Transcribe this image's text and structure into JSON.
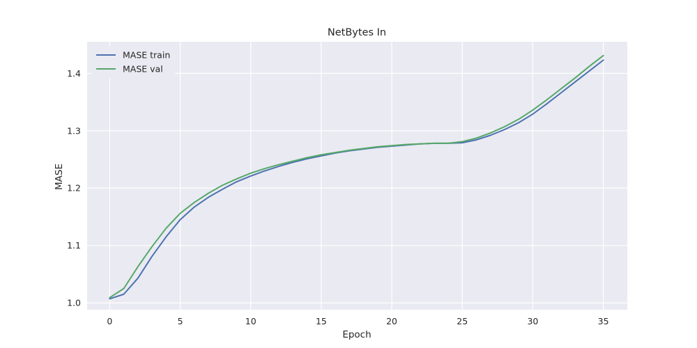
{
  "chart_data": {
    "type": "line",
    "title": "NetBytes In",
    "xlabel": "Epoch",
    "ylabel": "MASE",
    "xlim": [
      -1.6,
      36.7
    ],
    "ylim": [
      0.988,
      1.455
    ],
    "xticks": [
      0,
      5,
      10,
      15,
      20,
      25,
      30,
      35
    ],
    "yticks": [
      1.0,
      1.1,
      1.2,
      1.3,
      1.4
    ],
    "ytick_labels": [
      "1.0",
      "1.1",
      "1.2",
      "1.3",
      "1.4"
    ],
    "grid": true,
    "legend_position": "top-left",
    "x": [
      0,
      1,
      2,
      3,
      4,
      5,
      6,
      7,
      8,
      9,
      10,
      11,
      12,
      13,
      14,
      15,
      16,
      17,
      18,
      19,
      20,
      21,
      22,
      23,
      24,
      25,
      26,
      27,
      28,
      29,
      30,
      31,
      32,
      33,
      34,
      35
    ],
    "series": [
      {
        "name": "MASE train",
        "color": "#4c72b0",
        "values": [
          1.007,
          1.015,
          1.043,
          1.081,
          1.115,
          1.145,
          1.167,
          1.184,
          1.198,
          1.211,
          1.221,
          1.23,
          1.238,
          1.245,
          1.251,
          1.256,
          1.261,
          1.265,
          1.268,
          1.271,
          1.273,
          1.275,
          1.277,
          1.278,
          1.278,
          1.279,
          1.284,
          1.292,
          1.302,
          1.314,
          1.329,
          1.347,
          1.366,
          1.385,
          1.404,
          1.423
        ]
      },
      {
        "name": "MASE val",
        "color": "#55a868",
        "values": [
          1.009,
          1.025,
          1.063,
          1.098,
          1.13,
          1.156,
          1.175,
          1.191,
          1.205,
          1.216,
          1.226,
          1.234,
          1.241,
          1.247,
          1.253,
          1.258,
          1.262,
          1.266,
          1.269,
          1.272,
          1.274,
          1.276,
          1.277,
          1.278,
          1.278,
          1.281,
          1.287,
          1.296,
          1.307,
          1.32,
          1.336,
          1.354,
          1.373,
          1.392,
          1.412,
          1.431
        ]
      }
    ]
  }
}
